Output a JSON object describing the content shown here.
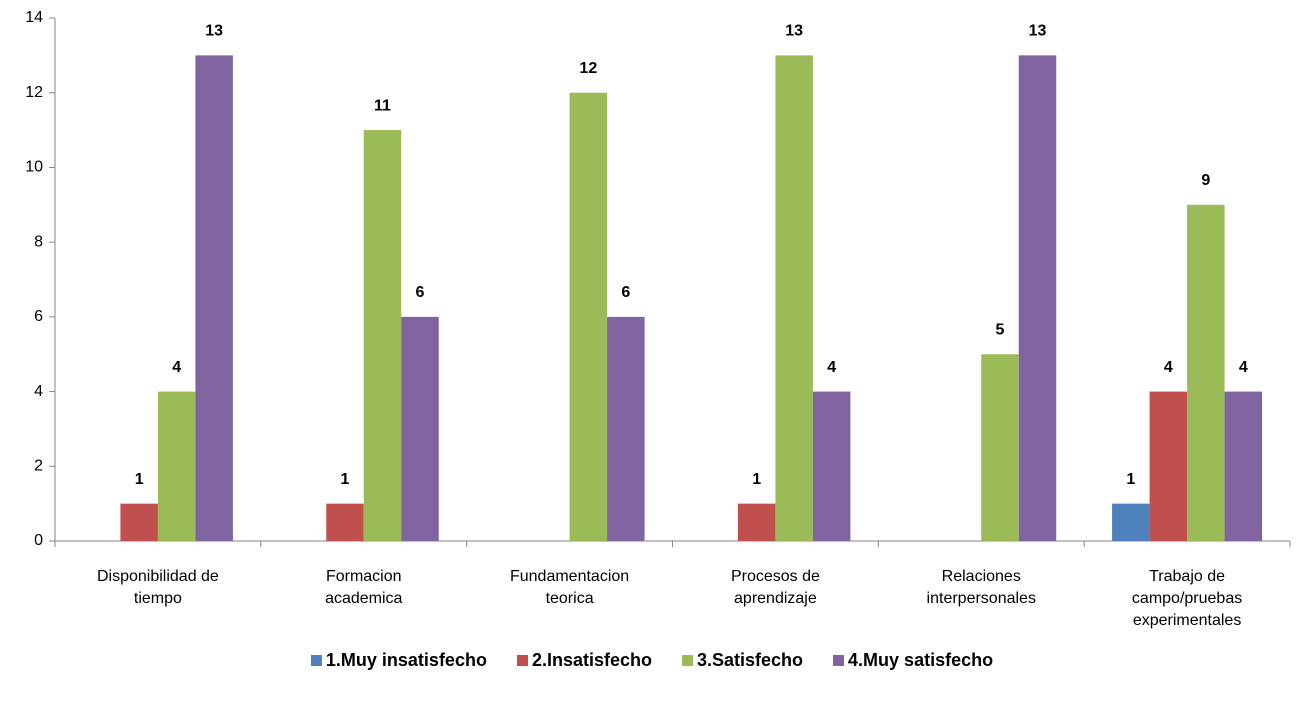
{
  "chart_data": {
    "type": "bar",
    "categories": [
      "Disponibilidad de\ntiempo",
      "Formacion\nacademica",
      "Fundamentacion\nteorica",
      "Procesos de\naprendizaje",
      "Relaciones\ninterpersonales",
      "Trabajo de\ncampo/pruebas\nexperimentales"
    ],
    "series": [
      {
        "name": "1.Muy insatisfecho",
        "color": "#4f81bd",
        "values": [
          null,
          null,
          null,
          null,
          null,
          1
        ]
      },
      {
        "name": "2.Insatisfecho",
        "color": "#c0504d",
        "values": [
          1,
          1,
          null,
          1,
          null,
          4
        ]
      },
      {
        "name": "3.Satisfecho",
        "color": "#9bbb59",
        "values": [
          4,
          11,
          12,
          13,
          5,
          9
        ]
      },
      {
        "name": "4.Muy satisfecho",
        "color": "#8064a2",
        "values": [
          13,
          6,
          6,
          4,
          13,
          4
        ]
      }
    ],
    "ylim": [
      0,
      14
    ],
    "yticks": [
      0,
      2,
      4,
      6,
      8,
      10,
      12,
      14
    ],
    "legend": "bottom"
  }
}
